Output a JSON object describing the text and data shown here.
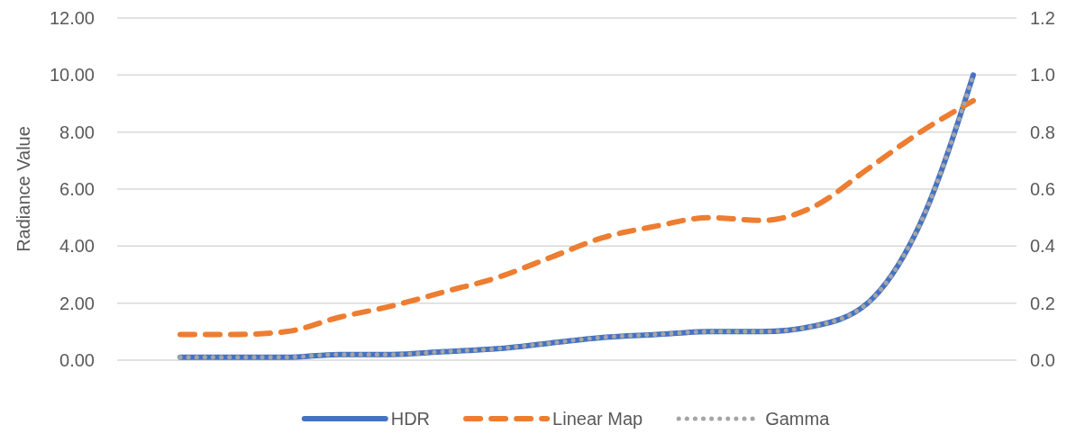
{
  "chart_data": {
    "type": "line",
    "ylabel": "Radiance Value",
    "categories": [
      null,
      null,
      null,
      null,
      null,
      null,
      null,
      null,
      null,
      null,
      null,
      null,
      null,
      null,
      null,
      null
    ],
    "ylim": [
      0,
      12
    ],
    "yticks": [
      {
        "value": 0,
        "label": "0.00"
      },
      {
        "value": 2,
        "label": "2.00"
      },
      {
        "value": 4,
        "label": "4.00"
      },
      {
        "value": 6,
        "label": "6.00"
      },
      {
        "value": 8,
        "label": "8.00"
      },
      {
        "value": 10,
        "label": "10.00"
      },
      {
        "value": 12,
        "label": "12.00"
      }
    ],
    "y2lim": [
      0,
      1.2
    ],
    "y2ticks": [
      {
        "value": 0,
        "label": "0.0"
      },
      {
        "value": 0.2,
        "label": "0.2"
      },
      {
        "value": 0.4,
        "label": "0.4"
      },
      {
        "value": 0.6,
        "label": "0.6"
      },
      {
        "value": 0.8,
        "label": "0.8"
      },
      {
        "value": 1,
        "label": "1.0"
      },
      {
        "value": 1.2,
        "label": "1.2"
      }
    ],
    "grid": "y",
    "legend": "bottom",
    "tick_labels": "y",
    "series": [
      {
        "name": "HDR",
        "color": "#4472c4",
        "line_style": "solid",
        "values": [
          0.1,
          0.1,
          0.1,
          0.2,
          0.2,
          0.3,
          0.4,
          0.6,
          0.8,
          0.9,
          1.0,
          1.0,
          1.2,
          2.0,
          4.8,
          10.0
        ]
      },
      {
        "name": "Linear Map",
        "color": "#ed7d31",
        "line_style": "dashed",
        "axis": "y2",
        "values": [
          0.09,
          0.09,
          0.1,
          0.15,
          0.19,
          0.24,
          0.29,
          0.36,
          0.43,
          0.47,
          0.5,
          0.49,
          0.54,
          0.67,
          0.8,
          0.91
        ]
      },
      {
        "name": "Gamma",
        "color": "#a5a5a5",
        "line_style": "dotted",
        "axis": "y2",
        "values": [
          0.01,
          0.01,
          0.01,
          0.02,
          0.02,
          0.03,
          0.04,
          0.06,
          0.08,
          0.09,
          0.1,
          0.1,
          0.12,
          0.2,
          0.48,
          1.0
        ]
      }
    ]
  }
}
